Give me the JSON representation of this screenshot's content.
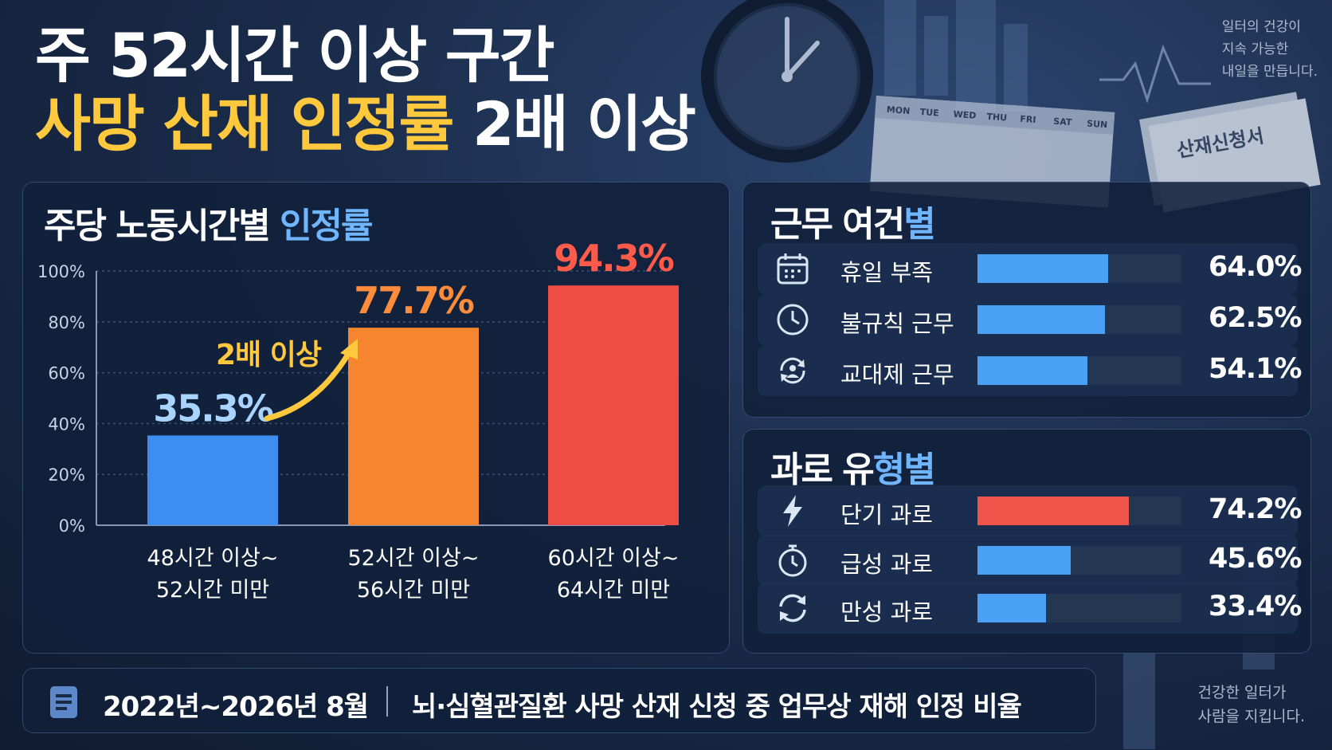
{
  "header": {
    "title_line1": "주 52시간 이상 구간",
    "title_line2_highlight": "사망 산재 인정률",
    "title_line2_rest": "2배 이상"
  },
  "side_text_top": [
    "일터의 건강이",
    "지속 가능한",
    "내일을 만듭니다."
  ],
  "side_text_bottom": [
    "건강한 일터가",
    "사람을 지킵니다."
  ],
  "deco": {
    "calendar_days": [
      "MON",
      "TUE",
      "WED",
      "THU",
      "FRI",
      "SAT",
      "SUN"
    ],
    "form_title": "산재신청서"
  },
  "main_chart": {
    "title_plain": "주당 노동시간별",
    "title_highlight": "인정률",
    "annotation": "2배 이상"
  },
  "chart_data": [
    {
      "type": "bar",
      "title": "주당 노동시간별 인정률",
      "categories": [
        [
          "48시간 이상~",
          "52시간 미만"
        ],
        [
          "52시간 이상~",
          "56시간 미만"
        ],
        [
          "60시간 이상~",
          "64시간 미만"
        ]
      ],
      "values": [
        35.3,
        77.7,
        94.3
      ],
      "value_labels": [
        "35.3%",
        "77.7%",
        "94.3%"
      ],
      "colors": [
        "#3d8ef0",
        "#f5862f",
        "#ee4d45"
      ],
      "label_colors": [
        "#a8d4ff",
        "#ff8c3a",
        "#ff5a4a"
      ],
      "yticks": [
        "100%",
        "80%",
        "60%",
        "40%",
        "20%",
        "0%"
      ],
      "ylim": [
        0,
        100
      ],
      "grid": true
    },
    {
      "type": "bar",
      "title": "근무 여건별",
      "orientation": "horizontal",
      "categories": [
        "휴일 부족",
        "불규칙 근무",
        "교대제 근무"
      ],
      "values": [
        64.0,
        62.5,
        54.1
      ],
      "value_labels": [
        "64.0%",
        "62.5%",
        "54.1%"
      ],
      "icons": [
        "calendar-icon",
        "clock-icon",
        "shift-rotation-icon"
      ],
      "colors": [
        "#4aa0f5",
        "#4aa0f5",
        "#4aa0f5"
      ],
      "xlim": [
        0,
        100
      ]
    },
    {
      "type": "bar",
      "title": "과로 유형별",
      "orientation": "horizontal",
      "categories": [
        "단기 과로",
        "급성 과로",
        "만성 과로"
      ],
      "values": [
        74.2,
        45.6,
        33.4
      ],
      "value_labels": [
        "74.2%",
        "45.6%",
        "33.4%"
      ],
      "icons": [
        "lightning-icon",
        "stopwatch-icon",
        "cycle-icon"
      ],
      "colors": [
        "#f0534a",
        "#4aa0f5",
        "#4aa0f5"
      ],
      "xlim": [
        0,
        100
      ]
    }
  ],
  "panel_conditions": {
    "title_plain": "근무 여건",
    "title_highlight": "별"
  },
  "panel_overwork": {
    "title_plain": "과로 유",
    "title_highlight": "형별"
  },
  "footer": {
    "date": "2022년~2026년 8월",
    "description": "뇌·심혈관질환 사망 산재 신청 중 업무상 재해 인정 비율"
  }
}
